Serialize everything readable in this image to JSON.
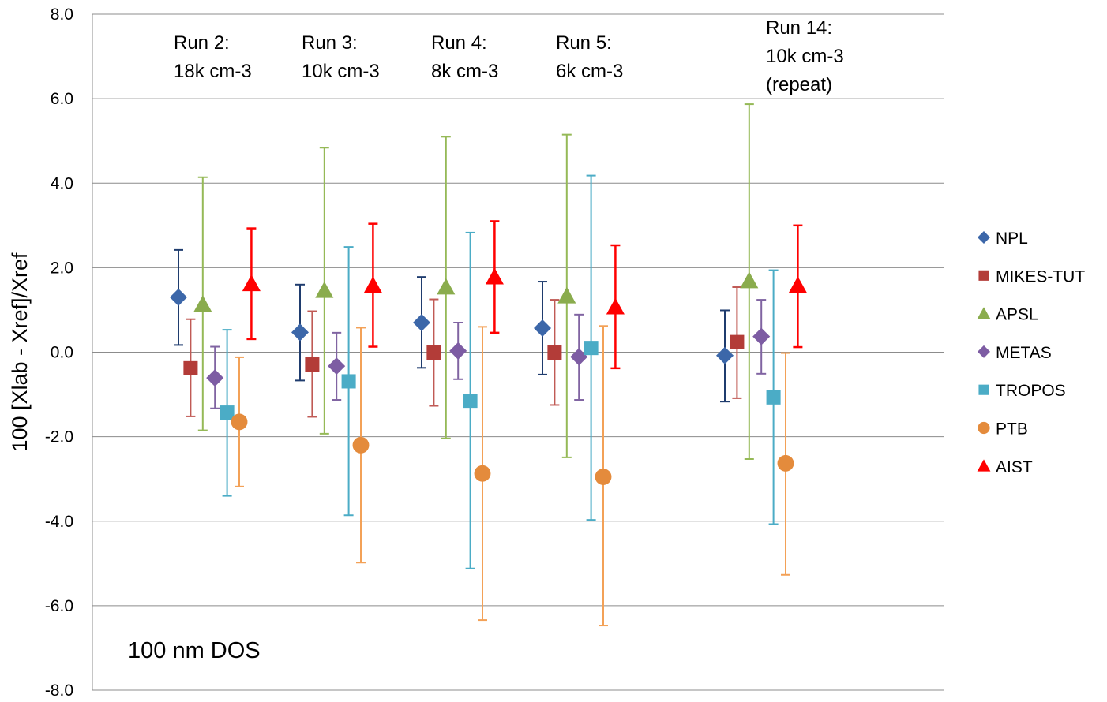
{
  "chart_data": {
    "type": "scatter",
    "title": "",
    "xlabel": "",
    "ylabel": "100 [Xlab - Xref]/Xref",
    "ylim": [
      -8.0,
      8.0
    ],
    "yticks": [
      "8.0",
      "6.0",
      "4.0",
      "2.0",
      "0.0",
      "-2.0",
      "-4.0",
      "-6.0",
      "-8.0"
    ],
    "grid": true,
    "legend_position": "right",
    "annotation": "100 nm DOS",
    "groups": [
      {
        "label": [
          "Run 2:",
          "18k cm-3"
        ]
      },
      {
        "label": [
          "Run 3:",
          "10k cm-3"
        ]
      },
      {
        "label": [
          "Run 4:",
          "8k cm-3"
        ]
      },
      {
        "label": [
          "Run 5:",
          "6k cm-3"
        ]
      },
      {
        "label": [
          "Run 14:",
          "10k cm-3",
          "(repeat)"
        ]
      }
    ],
    "series": [
      {
        "name": "NPL",
        "marker": "diamond",
        "color": "#3c67a9",
        "error_color": "#1f3c6e",
        "values": [
          1.3,
          0.47,
          0.7,
          0.57,
          -0.08
        ],
        "upper": [
          2.42,
          1.6,
          1.78,
          1.67,
          0.99
        ],
        "lower": [
          0.17,
          -0.67,
          -0.37,
          -0.53,
          -1.17
        ]
      },
      {
        "name": "MIKES-TUT",
        "marker": "square",
        "color": "#b33c38",
        "error_color": "#c05a55",
        "values": [
          -0.38,
          -0.29,
          -0.01,
          -0.01,
          0.24
        ],
        "upper": [
          0.78,
          0.97,
          1.25,
          1.24,
          1.54
        ],
        "lower": [
          -1.52,
          -1.53,
          -1.27,
          -1.25,
          -1.09
        ]
      },
      {
        "name": "APSL",
        "marker": "triangle",
        "color": "#8aac4d",
        "error_color": "#95b957",
        "values": [
          1.13,
          1.46,
          1.54,
          1.33,
          1.69
        ],
        "upper": [
          4.14,
          4.84,
          5.1,
          5.15,
          5.87
        ],
        "lower": [
          -1.85,
          -1.93,
          -2.04,
          -2.49,
          -2.53
        ]
      },
      {
        "name": "METAS",
        "marker": "diamond",
        "color": "#7d5ca3",
        "error_color": "#8064a2",
        "values": [
          -0.61,
          -0.33,
          0.03,
          -0.11,
          0.37
        ],
        "upper": [
          0.13,
          0.46,
          0.7,
          0.89,
          1.24
        ],
        "lower": [
          -1.33,
          -1.13,
          -0.64,
          -1.13,
          -0.51
        ]
      },
      {
        "name": "TROPOS",
        "marker": "square",
        "color": "#4bacc6",
        "error_color": "#4bacc6",
        "values": [
          -1.43,
          -0.69,
          -1.15,
          0.1,
          -1.07
        ],
        "upper": [
          0.53,
          2.49,
          2.83,
          4.18,
          1.94
        ],
        "lower": [
          -3.4,
          -3.86,
          -5.12,
          -3.97,
          -4.07
        ]
      },
      {
        "name": "PTB",
        "marker": "circle",
        "color": "#e48b3c",
        "error_color": "#f3a157",
        "values": [
          -1.65,
          -2.2,
          -2.87,
          -2.95,
          -2.63
        ],
        "upper": [
          -0.12,
          0.58,
          0.6,
          0.62,
          -0.02
        ],
        "lower": [
          -3.18,
          -4.98,
          -6.34,
          -6.47,
          -5.27
        ]
      },
      {
        "name": "AIST",
        "marker": "triangle",
        "color": "#ff0000",
        "error_color": "#ff0000",
        "values": [
          1.62,
          1.58,
          1.78,
          1.07,
          1.58
        ],
        "upper": [
          2.93,
          3.04,
          3.1,
          2.53,
          3.0
        ],
        "lower": [
          0.31,
          0.13,
          0.46,
          -0.38,
          0.12
        ]
      }
    ]
  }
}
